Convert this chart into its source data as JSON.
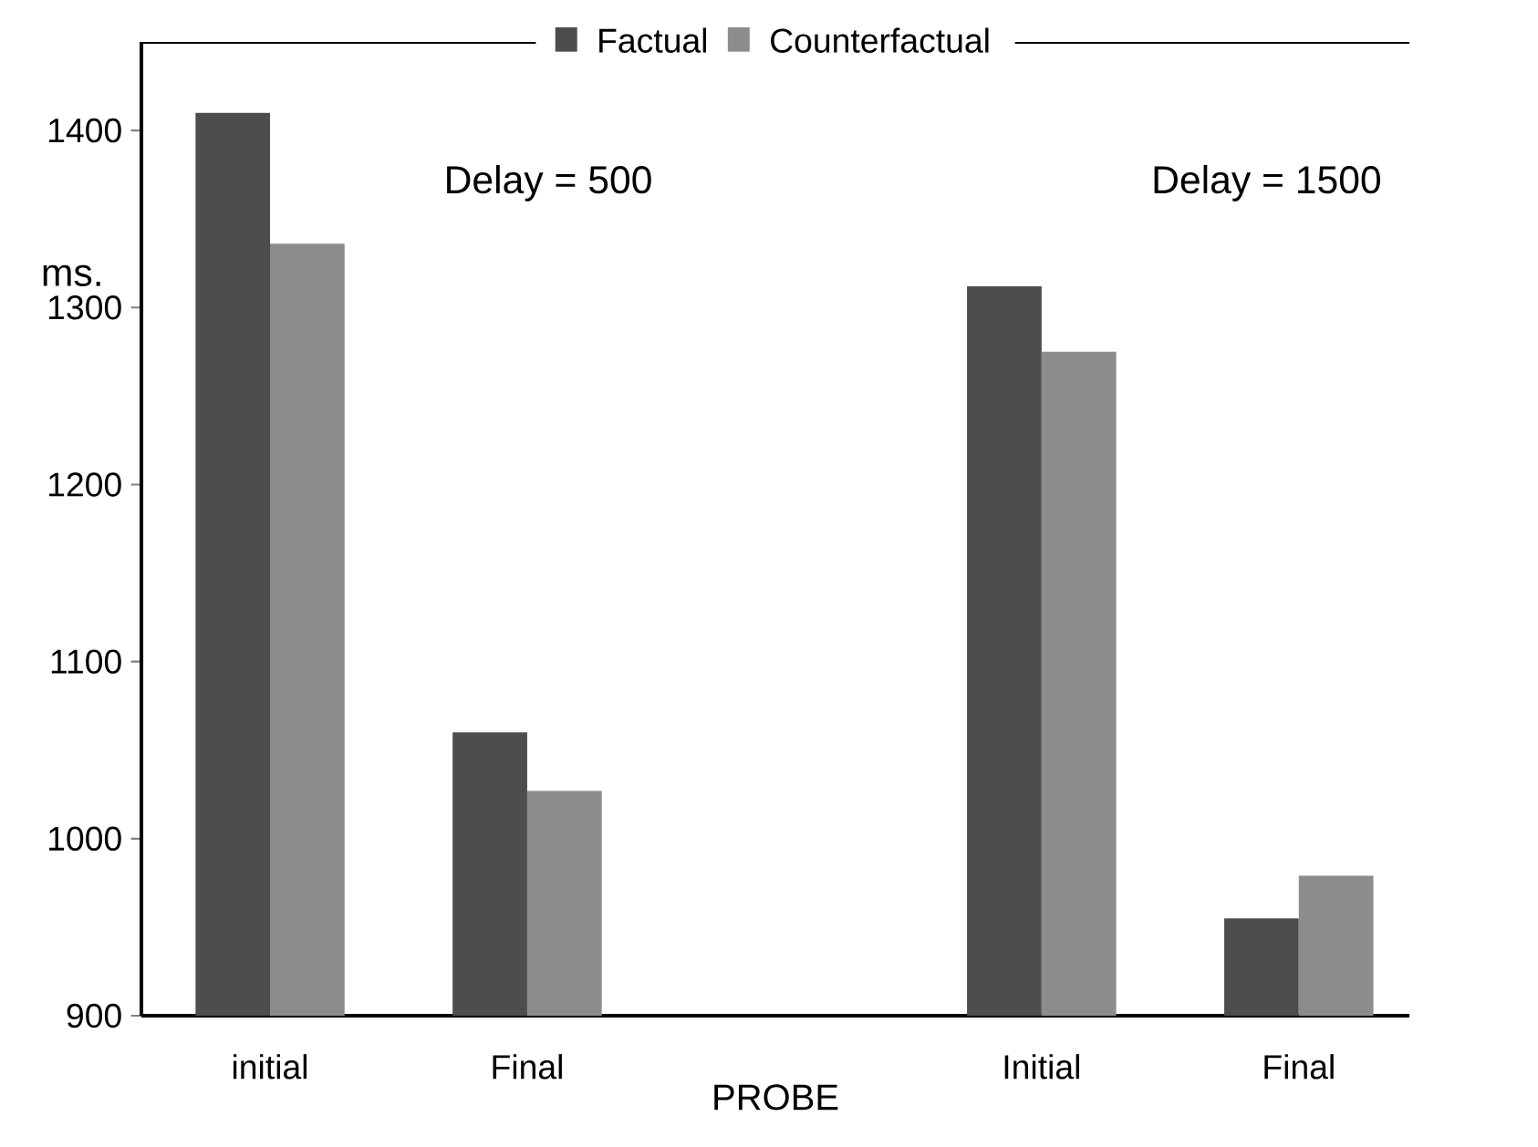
{
  "chart_data": {
    "type": "bar",
    "xlabel": "PROBE",
    "ylabel": "ms.",
    "categories": [
      "initial",
      "Final",
      null,
      "Initial",
      "Final"
    ],
    "series": [
      {
        "name": "Factual",
        "color": "#4d4d4d",
        "values": [
          1410,
          1060,
          null,
          1312,
          955
        ]
      },
      {
        "name": "Counterfactual",
        "color": "#8c8c8c",
        "values": [
          1336,
          1027,
          null,
          1275,
          979
        ]
      }
    ],
    "ylim": [
      900,
      1450
    ],
    "yticks": [
      900,
      1000,
      1100,
      1200,
      1300,
      1400
    ],
    "annotations": [
      "Delay = 500",
      "Delay = 1500"
    ],
    "legend": "top",
    "grid": false
  }
}
